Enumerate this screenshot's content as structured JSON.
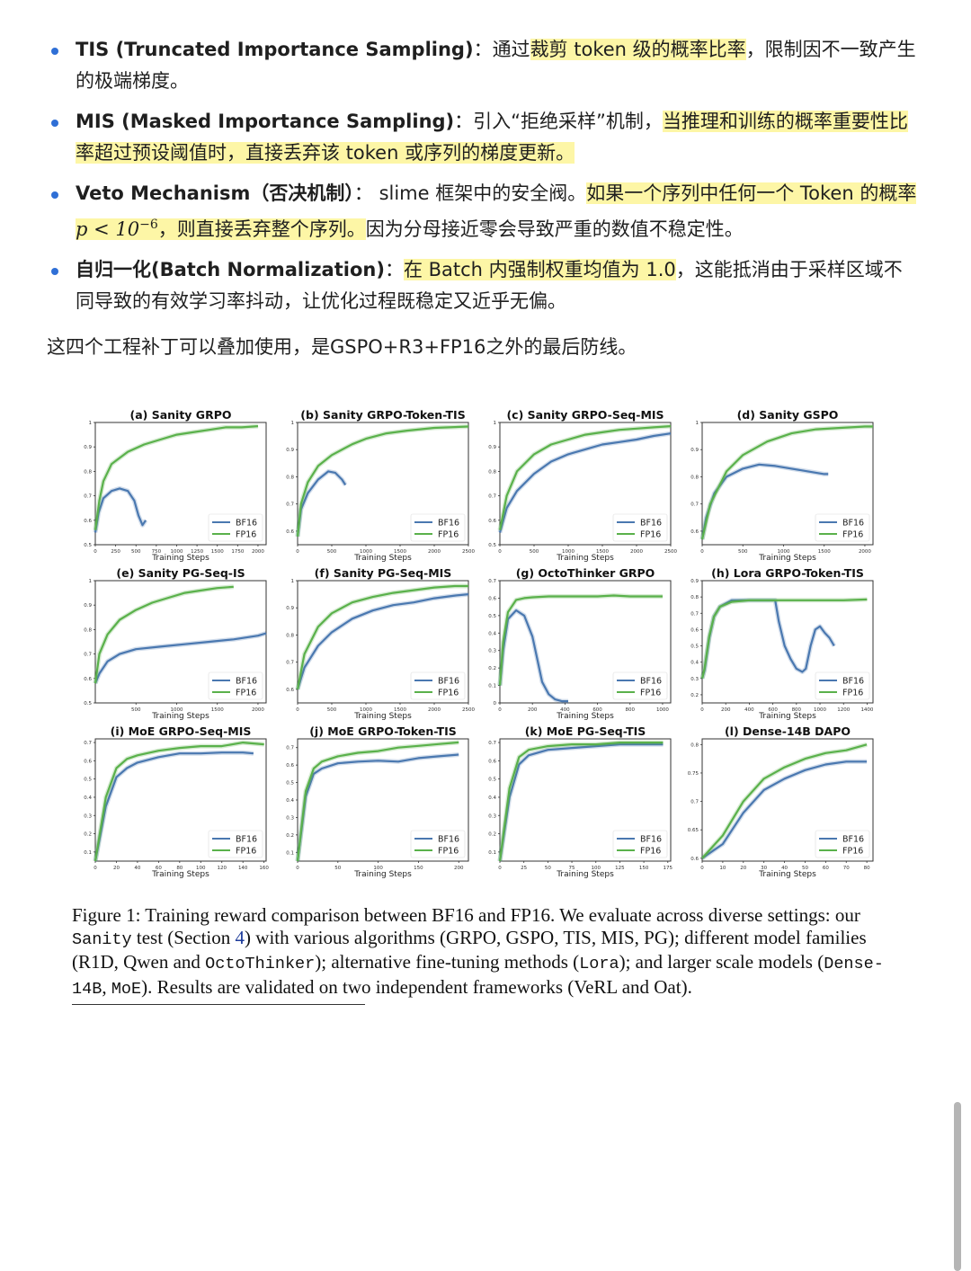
{
  "bullets": [
    {
      "term": "TIS (Truncated Importance Sampling)",
      "sep": "：",
      "pre": "通过",
      "hl": "裁剪 token 级的概率比率",
      "post": "，限制因不一致产生的极端梯度。"
    },
    {
      "term": "MIS (Masked Importance Sampling)",
      "sep": "：",
      "pre": "引入“拒绝采样”机制，",
      "hl": "当推理和训练的概率重要性比率超过预设阈值时，直接丢弃该 token 或序列的梯度更新。",
      "post": ""
    },
    {
      "term": "Veto Mechanism（否决机制）",
      "sep": "： ",
      "pre": "slime 框架中的安全阀。",
      "hl1": "如果一个序列中任何一个 Token 的概率 ",
      "math_base": "p < 10",
      "math_exp": "−6",
      "hl2": "，则直接丢弃整个序列。",
      "post": "因为分母接近零会导致严重的数值不稳定性。"
    },
    {
      "term": "自归一化(Batch Normalization)",
      "sep": "：",
      "pre": "",
      "hl": "在 Batch 内强制权重均值为 1.0",
      "post": "，这能抵消由于采样区域不同导致的有效学习率抖动，让优化过程既稳定又近乎无偏。"
    }
  ],
  "summary": "这四个工程补丁可以叠加使用，是GSPO+R3+FP16之外的最后防线。",
  "colors": {
    "bf16": "#4a78b0",
    "fp16": "#5ab14b",
    "highlight": "#fdf6a6",
    "bullet": "#2f6fd6"
  },
  "chart_data": [
    {
      "type": "line",
      "title": "(a) Sanity GRPO",
      "xlabel": "Training Steps",
      "xlim": [
        0,
        2100
      ],
      "ylim": [
        0.5,
        1.0
      ],
      "xticks": [
        0,
        250,
        500,
        750,
        1000,
        1250,
        1500,
        1750,
        2000
      ],
      "yticks": [
        0.5,
        0.6,
        0.7,
        0.8,
        0.9,
        1.0
      ],
      "series": [
        {
          "name": "BF16",
          "x": [
            0,
            40,
            100,
            200,
            300,
            400,
            480,
            530,
            580,
            620
          ],
          "y": [
            0.55,
            0.63,
            0.69,
            0.72,
            0.73,
            0.72,
            0.68,
            0.62,
            0.58,
            0.6
          ]
        },
        {
          "name": "FP16",
          "x": [
            0,
            50,
            100,
            200,
            400,
            600,
            800,
            1000,
            1200,
            1400,
            1600,
            1800,
            2000
          ],
          "y": [
            0.56,
            0.68,
            0.76,
            0.83,
            0.88,
            0.91,
            0.93,
            0.95,
            0.96,
            0.97,
            0.98,
            0.98,
            0.985
          ]
        }
      ]
    },
    {
      "type": "line",
      "title": "(b) Sanity GRPO-Token-TIS",
      "xlabel": "Training Steps",
      "xlim": [
        0,
        2500
      ],
      "ylim": [
        0.55,
        1.0
      ],
      "xticks": [
        0,
        500,
        1000,
        1500,
        2000,
        2500
      ],
      "yticks": [
        0.6,
        0.7,
        0.8,
        0.9,
        1.0
      ],
      "series": [
        {
          "name": "BF16",
          "x": [
            0,
            50,
            150,
            300,
            450,
            550,
            650,
            700
          ],
          "y": [
            0.58,
            0.68,
            0.74,
            0.79,
            0.82,
            0.815,
            0.79,
            0.77
          ]
        },
        {
          "name": "FP16",
          "x": [
            0,
            50,
            150,
            300,
            500,
            800,
            1000,
            1300,
            1600,
            2000,
            2500
          ],
          "y": [
            0.58,
            0.7,
            0.78,
            0.84,
            0.88,
            0.92,
            0.94,
            0.96,
            0.97,
            0.98,
            0.985
          ]
        }
      ]
    },
    {
      "type": "line",
      "title": "(c) Sanity GRPO-Seq-MIS",
      "xlabel": "Training Steps",
      "xlim": [
        0,
        2500
      ],
      "ylim": [
        0.5,
        1.0
      ],
      "xticks": [
        0,
        500,
        1000,
        1500,
        2000,
        2500
      ],
      "yticks": [
        0.5,
        0.6,
        0.7,
        0.8,
        0.9,
        1.0
      ],
      "series": [
        {
          "name": "BF16",
          "x": [
            0,
            100,
            250,
            500,
            750,
            1000,
            1250,
            1500,
            1750,
            2000,
            2250,
            2500
          ],
          "y": [
            0.55,
            0.65,
            0.72,
            0.79,
            0.84,
            0.87,
            0.89,
            0.91,
            0.92,
            0.93,
            0.945,
            0.955
          ]
        },
        {
          "name": "FP16",
          "x": [
            0,
            100,
            250,
            500,
            750,
            1000,
            1250,
            1500,
            1750,
            2000,
            2250,
            2500
          ],
          "y": [
            0.56,
            0.7,
            0.8,
            0.87,
            0.91,
            0.93,
            0.95,
            0.96,
            0.97,
            0.975,
            0.98,
            0.985
          ]
        }
      ]
    },
    {
      "type": "line",
      "title": "(d) Sanity GSPO",
      "xlabel": "Training Steps",
      "xlim": [
        0,
        2100
      ],
      "ylim": [
        0.55,
        1.0
      ],
      "xticks": [
        0,
        500,
        1000,
        1500,
        2000
      ],
      "yticks": [
        0.6,
        0.7,
        0.8,
        0.9,
        1.0
      ],
      "series": [
        {
          "name": "BF16",
          "x": [
            0,
            50,
            150,
            300,
            500,
            700,
            900,
            1100,
            1300,
            1500,
            1550
          ],
          "y": [
            0.57,
            0.65,
            0.74,
            0.8,
            0.83,
            0.845,
            0.84,
            0.83,
            0.82,
            0.81,
            0.81
          ]
        },
        {
          "name": "FP16",
          "x": [
            0,
            100,
            300,
            500,
            800,
            1100,
            1400,
            1700,
            2000,
            2100
          ],
          "y": [
            0.57,
            0.7,
            0.82,
            0.88,
            0.93,
            0.96,
            0.975,
            0.98,
            0.985,
            0.985
          ]
        }
      ]
    },
    {
      "type": "line",
      "title": "(e) Sanity PG-Seq-IS",
      "xlabel": "Training Steps",
      "xlim": [
        0,
        2100
      ],
      "ylim": [
        0.5,
        1.0
      ],
      "xticks": [
        500,
        1000,
        1500,
        2000
      ],
      "yticks": [
        0.5,
        0.6,
        0.7,
        0.8,
        0.9,
        1.0
      ],
      "series": [
        {
          "name": "BF16",
          "x": [
            0,
            50,
            150,
            300,
            500,
            800,
            1100,
            1400,
            1700,
            2000,
            2100
          ],
          "y": [
            0.58,
            0.62,
            0.67,
            0.7,
            0.72,
            0.73,
            0.74,
            0.75,
            0.76,
            0.775,
            0.785
          ]
        },
        {
          "name": "FP16",
          "x": [
            0,
            50,
            150,
            300,
            500,
            700,
            900,
            1100,
            1300,
            1500,
            1700
          ],
          "y": [
            0.58,
            0.7,
            0.78,
            0.84,
            0.88,
            0.91,
            0.93,
            0.95,
            0.96,
            0.97,
            0.975
          ]
        }
      ]
    },
    {
      "type": "line",
      "title": "(f) Sanity PG-Seq-MIS",
      "xlabel": "Training Steps",
      "xlim": [
        0,
        2500
      ],
      "ylim": [
        0.55,
        1.0
      ],
      "xticks": [
        0,
        500,
        1000,
        1500,
        2000,
        2500
      ],
      "yticks": [
        0.6,
        0.7,
        0.8,
        0.9,
        1.0
      ],
      "series": [
        {
          "name": "BF16",
          "x": [
            0,
            100,
            300,
            500,
            800,
            1100,
            1400,
            1700,
            2000,
            2300,
            2500
          ],
          "y": [
            0.6,
            0.68,
            0.76,
            0.81,
            0.86,
            0.89,
            0.91,
            0.92,
            0.935,
            0.945,
            0.95
          ]
        },
        {
          "name": "FP16",
          "x": [
            0,
            100,
            300,
            500,
            800,
            1100,
            1400,
            1700,
            2000,
            2300,
            2500
          ],
          "y": [
            0.6,
            0.73,
            0.83,
            0.88,
            0.92,
            0.94,
            0.955,
            0.965,
            0.975,
            0.98,
            0.98
          ]
        }
      ]
    },
    {
      "type": "line",
      "title": "(g) OctoThinker GRPO",
      "xlabel": "Training Steps",
      "xlim": [
        0,
        1050
      ],
      "ylim": [
        0.0,
        0.7
      ],
      "xticks": [
        0,
        200,
        400,
        600,
        800,
        1000
      ],
      "yticks": [
        0.0,
        0.1,
        0.2,
        0.3,
        0.4,
        0.5,
        0.6,
        0.7
      ],
      "series": [
        {
          "name": "BF16",
          "x": [
            0,
            20,
            50,
            100,
            150,
            200,
            230,
            260,
            300,
            340,
            380,
            420
          ],
          "y": [
            0.1,
            0.3,
            0.48,
            0.53,
            0.5,
            0.38,
            0.25,
            0.12,
            0.05,
            0.02,
            0.01,
            0.01
          ]
        },
        {
          "name": "FP16",
          "x": [
            0,
            20,
            50,
            100,
            150,
            200,
            300,
            400,
            500,
            600,
            700,
            800,
            900,
            1000
          ],
          "y": [
            0.1,
            0.35,
            0.52,
            0.59,
            0.6,
            0.605,
            0.61,
            0.61,
            0.61,
            0.61,
            0.615,
            0.61,
            0.61,
            0.61
          ]
        }
      ]
    },
    {
      "type": "line",
      "title": "(h) Lora GRPO-Token-TIS",
      "xlabel": "Training Steps",
      "xlim": [
        0,
        1450
      ],
      "ylim": [
        0.15,
        0.9
      ],
      "xticks": [
        0,
        200,
        400,
        600,
        800,
        1000,
        1200,
        1400
      ],
      "yticks": [
        0.2,
        0.3,
        0.4,
        0.5,
        0.6,
        0.7,
        0.8,
        0.9
      ],
      "series": [
        {
          "name": "BF16",
          "x": [
            0,
            20,
            60,
            100,
            150,
            250,
            350,
            450,
            550,
            620,
            650,
            700,
            750,
            800,
            850,
            880,
            920,
            960,
            1000,
            1040,
            1080,
            1120
          ],
          "y": [
            0.3,
            0.35,
            0.55,
            0.68,
            0.74,
            0.78,
            0.78,
            0.78,
            0.78,
            0.78,
            0.65,
            0.5,
            0.42,
            0.36,
            0.34,
            0.36,
            0.5,
            0.6,
            0.62,
            0.58,
            0.55,
            0.5
          ]
        },
        {
          "name": "FP16",
          "x": [
            0,
            20,
            60,
            100,
            150,
            250,
            400,
            600,
            800,
            1000,
            1200,
            1400
          ],
          "y": [
            0.3,
            0.36,
            0.56,
            0.68,
            0.74,
            0.77,
            0.78,
            0.78,
            0.78,
            0.78,
            0.78,
            0.785
          ]
        }
      ]
    },
    {
      "type": "line",
      "title": "(i) MoE GRPO-Seq-MIS",
      "xlabel": "Training Steps",
      "xlim": [
        0,
        162
      ],
      "ylim": [
        0.05,
        0.72
      ],
      "xticks": [
        0,
        20,
        40,
        60,
        80,
        100,
        120,
        140,
        160
      ],
      "yticks": [
        0.1,
        0.2,
        0.3,
        0.4,
        0.5,
        0.6,
        0.7
      ],
      "series": [
        {
          "name": "BF16",
          "x": [
            0,
            10,
            20,
            30,
            40,
            60,
            80,
            100,
            120,
            140,
            150
          ],
          "y": [
            0.05,
            0.35,
            0.51,
            0.56,
            0.59,
            0.62,
            0.64,
            0.64,
            0.645,
            0.645,
            0.64
          ]
        },
        {
          "name": "FP16",
          "x": [
            0,
            10,
            20,
            30,
            40,
            60,
            80,
            100,
            120,
            140,
            160
          ],
          "y": [
            0.05,
            0.4,
            0.56,
            0.61,
            0.63,
            0.655,
            0.67,
            0.68,
            0.68,
            0.7,
            0.69
          ]
        }
      ]
    },
    {
      "type": "line",
      "title": "(j) MoE GRPO-Token-TIS",
      "xlabel": "Training Steps",
      "xlim": [
        0,
        212
      ],
      "ylim": [
        0.05,
        0.75
      ],
      "xticks": [
        0,
        50,
        100,
        150,
        200
      ],
      "yticks": [
        0.1,
        0.2,
        0.3,
        0.4,
        0.5,
        0.6,
        0.7
      ],
      "series": [
        {
          "name": "BF16",
          "x": [
            0,
            10,
            20,
            30,
            50,
            75,
            100,
            125,
            150,
            175,
            200
          ],
          "y": [
            0.05,
            0.42,
            0.55,
            0.58,
            0.61,
            0.62,
            0.625,
            0.62,
            0.64,
            0.65,
            0.66
          ]
        },
        {
          "name": "FP16",
          "x": [
            0,
            10,
            20,
            30,
            50,
            75,
            100,
            125,
            150,
            175,
            200
          ],
          "y": [
            0.05,
            0.45,
            0.58,
            0.62,
            0.65,
            0.67,
            0.68,
            0.7,
            0.71,
            0.72,
            0.73
          ]
        }
      ]
    },
    {
      "type": "line",
      "title": "(k) MoE PG-Seq-TIS",
      "xlabel": "Training Steps",
      "xlim": [
        0,
        178
      ],
      "ylim": [
        0.05,
        0.72
      ],
      "xticks": [
        0,
        25,
        50,
        75,
        100,
        125,
        150,
        175
      ],
      "yticks": [
        0.1,
        0.2,
        0.3,
        0.4,
        0.5,
        0.6,
        0.7
      ],
      "series": [
        {
          "name": "BF16",
          "x": [
            0,
            10,
            20,
            30,
            50,
            75,
            100,
            125,
            150,
            170
          ],
          "y": [
            0.05,
            0.4,
            0.58,
            0.63,
            0.66,
            0.67,
            0.68,
            0.69,
            0.69,
            0.69
          ]
        },
        {
          "name": "FP16",
          "x": [
            0,
            10,
            20,
            30,
            50,
            75,
            100,
            125,
            150,
            170
          ],
          "y": [
            0.05,
            0.45,
            0.62,
            0.66,
            0.68,
            0.69,
            0.69,
            0.7,
            0.7,
            0.7
          ]
        }
      ]
    },
    {
      "type": "line",
      "title": "(l) Dense-14B DAPO",
      "xlabel": "Training Steps",
      "xlim": [
        0,
        83
      ],
      "ylim": [
        0.595,
        0.81
      ],
      "xticks": [
        0,
        10,
        20,
        30,
        40,
        50,
        60,
        70,
        80
      ],
      "yticks": [
        0.6,
        0.65,
        0.7,
        0.75,
        0.8
      ],
      "series": [
        {
          "name": "BF16",
          "x": [
            0,
            10,
            20,
            30,
            40,
            50,
            60,
            70,
            80
          ],
          "y": [
            0.6,
            0.625,
            0.68,
            0.72,
            0.74,
            0.755,
            0.765,
            0.77,
            0.77
          ]
        },
        {
          "name": "FP16",
          "x": [
            0,
            10,
            20,
            30,
            40,
            50,
            60,
            70,
            80
          ],
          "y": [
            0.6,
            0.64,
            0.7,
            0.74,
            0.76,
            0.775,
            0.785,
            0.79,
            0.8
          ]
        }
      ]
    }
  ],
  "caption": {
    "p1": "Figure 1: Training reward comparison between BF16 and FP16. We evaluate across diverse settings: our ",
    "sanity": "Sanity",
    "p2": " test (Section ",
    "ref": "4",
    "p3": ") with various algorithms (GRPO, GSPO, TIS, MIS, PG); different model families (R1D, Qwen and ",
    "octo": "OctoThinker",
    "p4": "); alternative fine-tuning methods (",
    "lora": "Lora",
    "p5": "); and larger scale models (",
    "dense": "Dense-14B",
    "p6": ", ",
    "moe": "MoE",
    "p7": "). Results are validated on two independent frameworks (VeRL and Oat)."
  }
}
